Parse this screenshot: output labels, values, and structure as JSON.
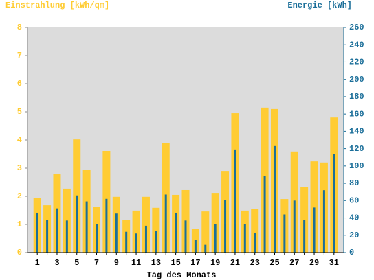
{
  "chart_data": {
    "type": "bar",
    "ylabel": "Einstrahlung [kWh/qm]",
    "y2label": "Energie [kWh]",
    "xlabel": "Tag des Monats",
    "categories": [
      "1",
      null,
      "3",
      null,
      "5",
      null,
      "7",
      null,
      "9",
      null,
      "11",
      null,
      "13",
      null,
      "15",
      null,
      "17",
      null,
      "19",
      null,
      "21",
      null,
      "23",
      null,
      "25",
      null,
      "27",
      null,
      "29",
      null,
      "31"
    ],
    "series": [
      {
        "color": "#ffcc33",
        "values": [
          1.95,
          1.68,
          2.78,
          2.27,
          4.02,
          2.95,
          1.63,
          3.61,
          1.98,
          1.15,
          1.49,
          1.98,
          1.59,
          3.9,
          2.05,
          2.22,
          0.83,
          1.46,
          2.12,
          2.9,
          4.95,
          1.49,
          1.56,
          5.15,
          5.1,
          1.9,
          3.59,
          2.34,
          3.24,
          3.2,
          4.8
        ]
      },
      {
        "color": "#1a6e99",
        "axis": "y2",
        "values": [
          46,
          38,
          51,
          37,
          66,
          59,
          33,
          62,
          45,
          24,
          22,
          31,
          25,
          67,
          46,
          37,
          15,
          9,
          33,
          61,
          119,
          33,
          23,
          88,
          123,
          44,
          60,
          38,
          52,
          72,
          114
        ]
      }
    ],
    "ylim": [
      0,
      8
    ],
    "yticks": [
      0,
      1,
      2,
      3,
      4,
      5,
      6,
      7,
      8
    ],
    "y2lim": [
      0,
      260
    ],
    "y2ticks": [
      0,
      20,
      40,
      60,
      80,
      100,
      120,
      140,
      160,
      180,
      200,
      220,
      240,
      260
    ],
    "plot_background": "#dcdcdc"
  }
}
